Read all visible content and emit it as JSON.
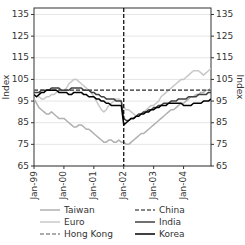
{
  "chart_data": {
    "type": "line",
    "ylabel": "Index",
    "y2label": "Index",
    "x": [
      0,
      1,
      2,
      3,
      4,
      5,
      6,
      7,
      8,
      9,
      10,
      11,
      12,
      13,
      14,
      15,
      16,
      17,
      18,
      19,
      20,
      21,
      22,
      23,
      24,
      25,
      26,
      27,
      28,
      29,
      30,
      31,
      32,
      33,
      34,
      35,
      36,
      37,
      38,
      39,
      40,
      41,
      42,
      43,
      44,
      45,
      46,
      47,
      48,
      49,
      50,
      51,
      52,
      53,
      54,
      55,
      56,
      57,
      58,
      59,
      60,
      61,
      62,
      63,
      64,
      65,
      66,
      67,
      68,
      69,
      70,
      71
    ],
    "xlim": [
      0,
      71
    ],
    "xticks": [
      {
        "value": 0,
        "label": "Jan-99"
      },
      {
        "value": 12,
        "label": "Jan-00"
      },
      {
        "value": 24,
        "label": "Jan-01"
      },
      {
        "value": 36,
        "label": "Jan-02"
      },
      {
        "value": 48,
        "label": "Jan-03"
      },
      {
        "value": 60,
        "label": "Jan-04"
      }
    ],
    "ylim": [
      65,
      138
    ],
    "yticks": [
      65,
      75,
      85,
      95,
      105,
      115,
      125,
      135
    ],
    "y2lim": [
      65,
      138
    ],
    "y2ticks": [
      65,
      75,
      85,
      95,
      105,
      115,
      125,
      135
    ],
    "annotations": [
      {
        "type": "vline",
        "x": 36,
        "color": "#000000",
        "line_style": "dashed"
      }
    ],
    "series": [
      {
        "name": "Taiwan",
        "color": "#b0b0b0",
        "line_style": "solid",
        "values": [
          96,
          94,
          92,
          91,
          90,
          89,
          89,
          90,
          89,
          88,
          87,
          87,
          87,
          86,
          85,
          84,
          83,
          83,
          84,
          84,
          83,
          82,
          82,
          81,
          80,
          79,
          78,
          77,
          76,
          76,
          77,
          77,
          76,
          76,
          77,
          76,
          76,
          75,
          75,
          76,
          77,
          78,
          79,
          80,
          80,
          81,
          82,
          83,
          84,
          85,
          86,
          87,
          88,
          89,
          90,
          91,
          91,
          92,
          93,
          94,
          94,
          95,
          96,
          97,
          97,
          98,
          98,
          99,
          99,
          100,
          100,
          101
        ]
      },
      {
        "name": "Euro",
        "color": "#c8c8c8",
        "line_style": "solid",
        "values": [
          98,
          97,
          97,
          96,
          96,
          97,
          97,
          98,
          98,
          99,
          100,
          100,
          100,
          101,
          103,
          104,
          105,
          105,
          104,
          103,
          102,
          101,
          100,
          99,
          97,
          95,
          93,
          91,
          90,
          91,
          93,
          94,
          95,
          96,
          96,
          95,
          92,
          91,
          91,
          90,
          89,
          88,
          88,
          89,
          90,
          91,
          92,
          93,
          93,
          94,
          95,
          97,
          98,
          99,
          100,
          101,
          102,
          103,
          104,
          105,
          105,
          106,
          107,
          108,
          109,
          109,
          109,
          108,
          107,
          108,
          109,
          110
        ]
      },
      {
        "name": "Hong Kong",
        "color": "#909090",
        "line_style": "dashed",
        "values": [
          100,
          100,
          100,
          100,
          100,
          100,
          100,
          100,
          100,
          100,
          100,
          100,
          100,
          100,
          100,
          100,
          100,
          100,
          100,
          100,
          100,
          100,
          100,
          100,
          100,
          100,
          100,
          100,
          100,
          100,
          100,
          100,
          100,
          100,
          100,
          100,
          100,
          100,
          100,
          100,
          100,
          100,
          100,
          100,
          100,
          100,
          100,
          100,
          100,
          100,
          100,
          100,
          100,
          100,
          100,
          100,
          100,
          100,
          100,
          100,
          100,
          100,
          100,
          100,
          100,
          100,
          100,
          100,
          100,
          100,
          100,
          100
        ]
      },
      {
        "name": "China",
        "color": "#606060",
        "line_style": "dashed",
        "values": [
          100,
          100,
          100,
          100,
          100,
          100,
          100,
          100,
          100,
          100,
          100,
          100,
          100,
          100,
          100,
          100,
          100,
          100,
          100,
          100,
          100,
          100,
          100,
          100,
          100,
          100,
          100,
          100,
          100,
          100,
          100,
          100,
          100,
          100,
          100,
          100,
          100,
          100,
          100,
          100,
          100,
          100,
          100,
          100,
          100,
          100,
          100,
          100,
          100,
          100,
          100,
          100,
          100,
          100,
          100,
          100,
          100,
          100,
          100,
          100,
          100,
          100,
          100,
          100,
          100,
          100,
          100,
          100,
          100,
          100,
          100,
          100
        ]
      },
      {
        "name": "India",
        "color": "#404040",
        "line_style": "solid",
        "values": [
          99,
          99,
          99,
          100,
          100,
          100,
          100,
          101,
          101,
          101,
          101,
          100,
          100,
          100,
          100,
          101,
          101,
          101,
          101,
          101,
          100,
          100,
          100,
          99,
          99,
          98,
          98,
          97,
          97,
          96,
          96,
          96,
          96,
          95,
          95,
          95,
          87,
          86,
          86,
          87,
          87,
          88,
          89,
          89,
          90,
          90,
          91,
          91,
          92,
          92,
          93,
          93,
          94,
          94,
          94,
          95,
          95,
          95,
          96,
          96,
          96,
          96,
          97,
          97,
          97,
          97,
          98,
          98,
          98,
          98,
          99,
          99
        ]
      },
      {
        "name": "Korea",
        "color": "#000000",
        "line_style": "solid",
        "values": [
          98,
          97,
          98,
          99,
          99,
          100,
          100,
          100,
          100,
          100,
          99,
          99,
          99,
          99,
          98,
          98,
          99,
          99,
          99,
          99,
          98,
          98,
          97,
          97,
          97,
          96,
          96,
          95,
          95,
          94,
          94,
          93,
          93,
          93,
          93,
          93,
          84,
          85,
          86,
          87,
          87,
          88,
          88,
          89,
          89,
          90,
          90,
          91,
          91,
          92,
          92,
          93,
          93,
          93,
          94,
          94,
          94,
          94,
          94,
          94,
          93,
          93,
          93,
          93,
          94,
          94,
          94,
          94,
          95,
          95,
          95,
          96
        ]
      }
    ]
  }
}
